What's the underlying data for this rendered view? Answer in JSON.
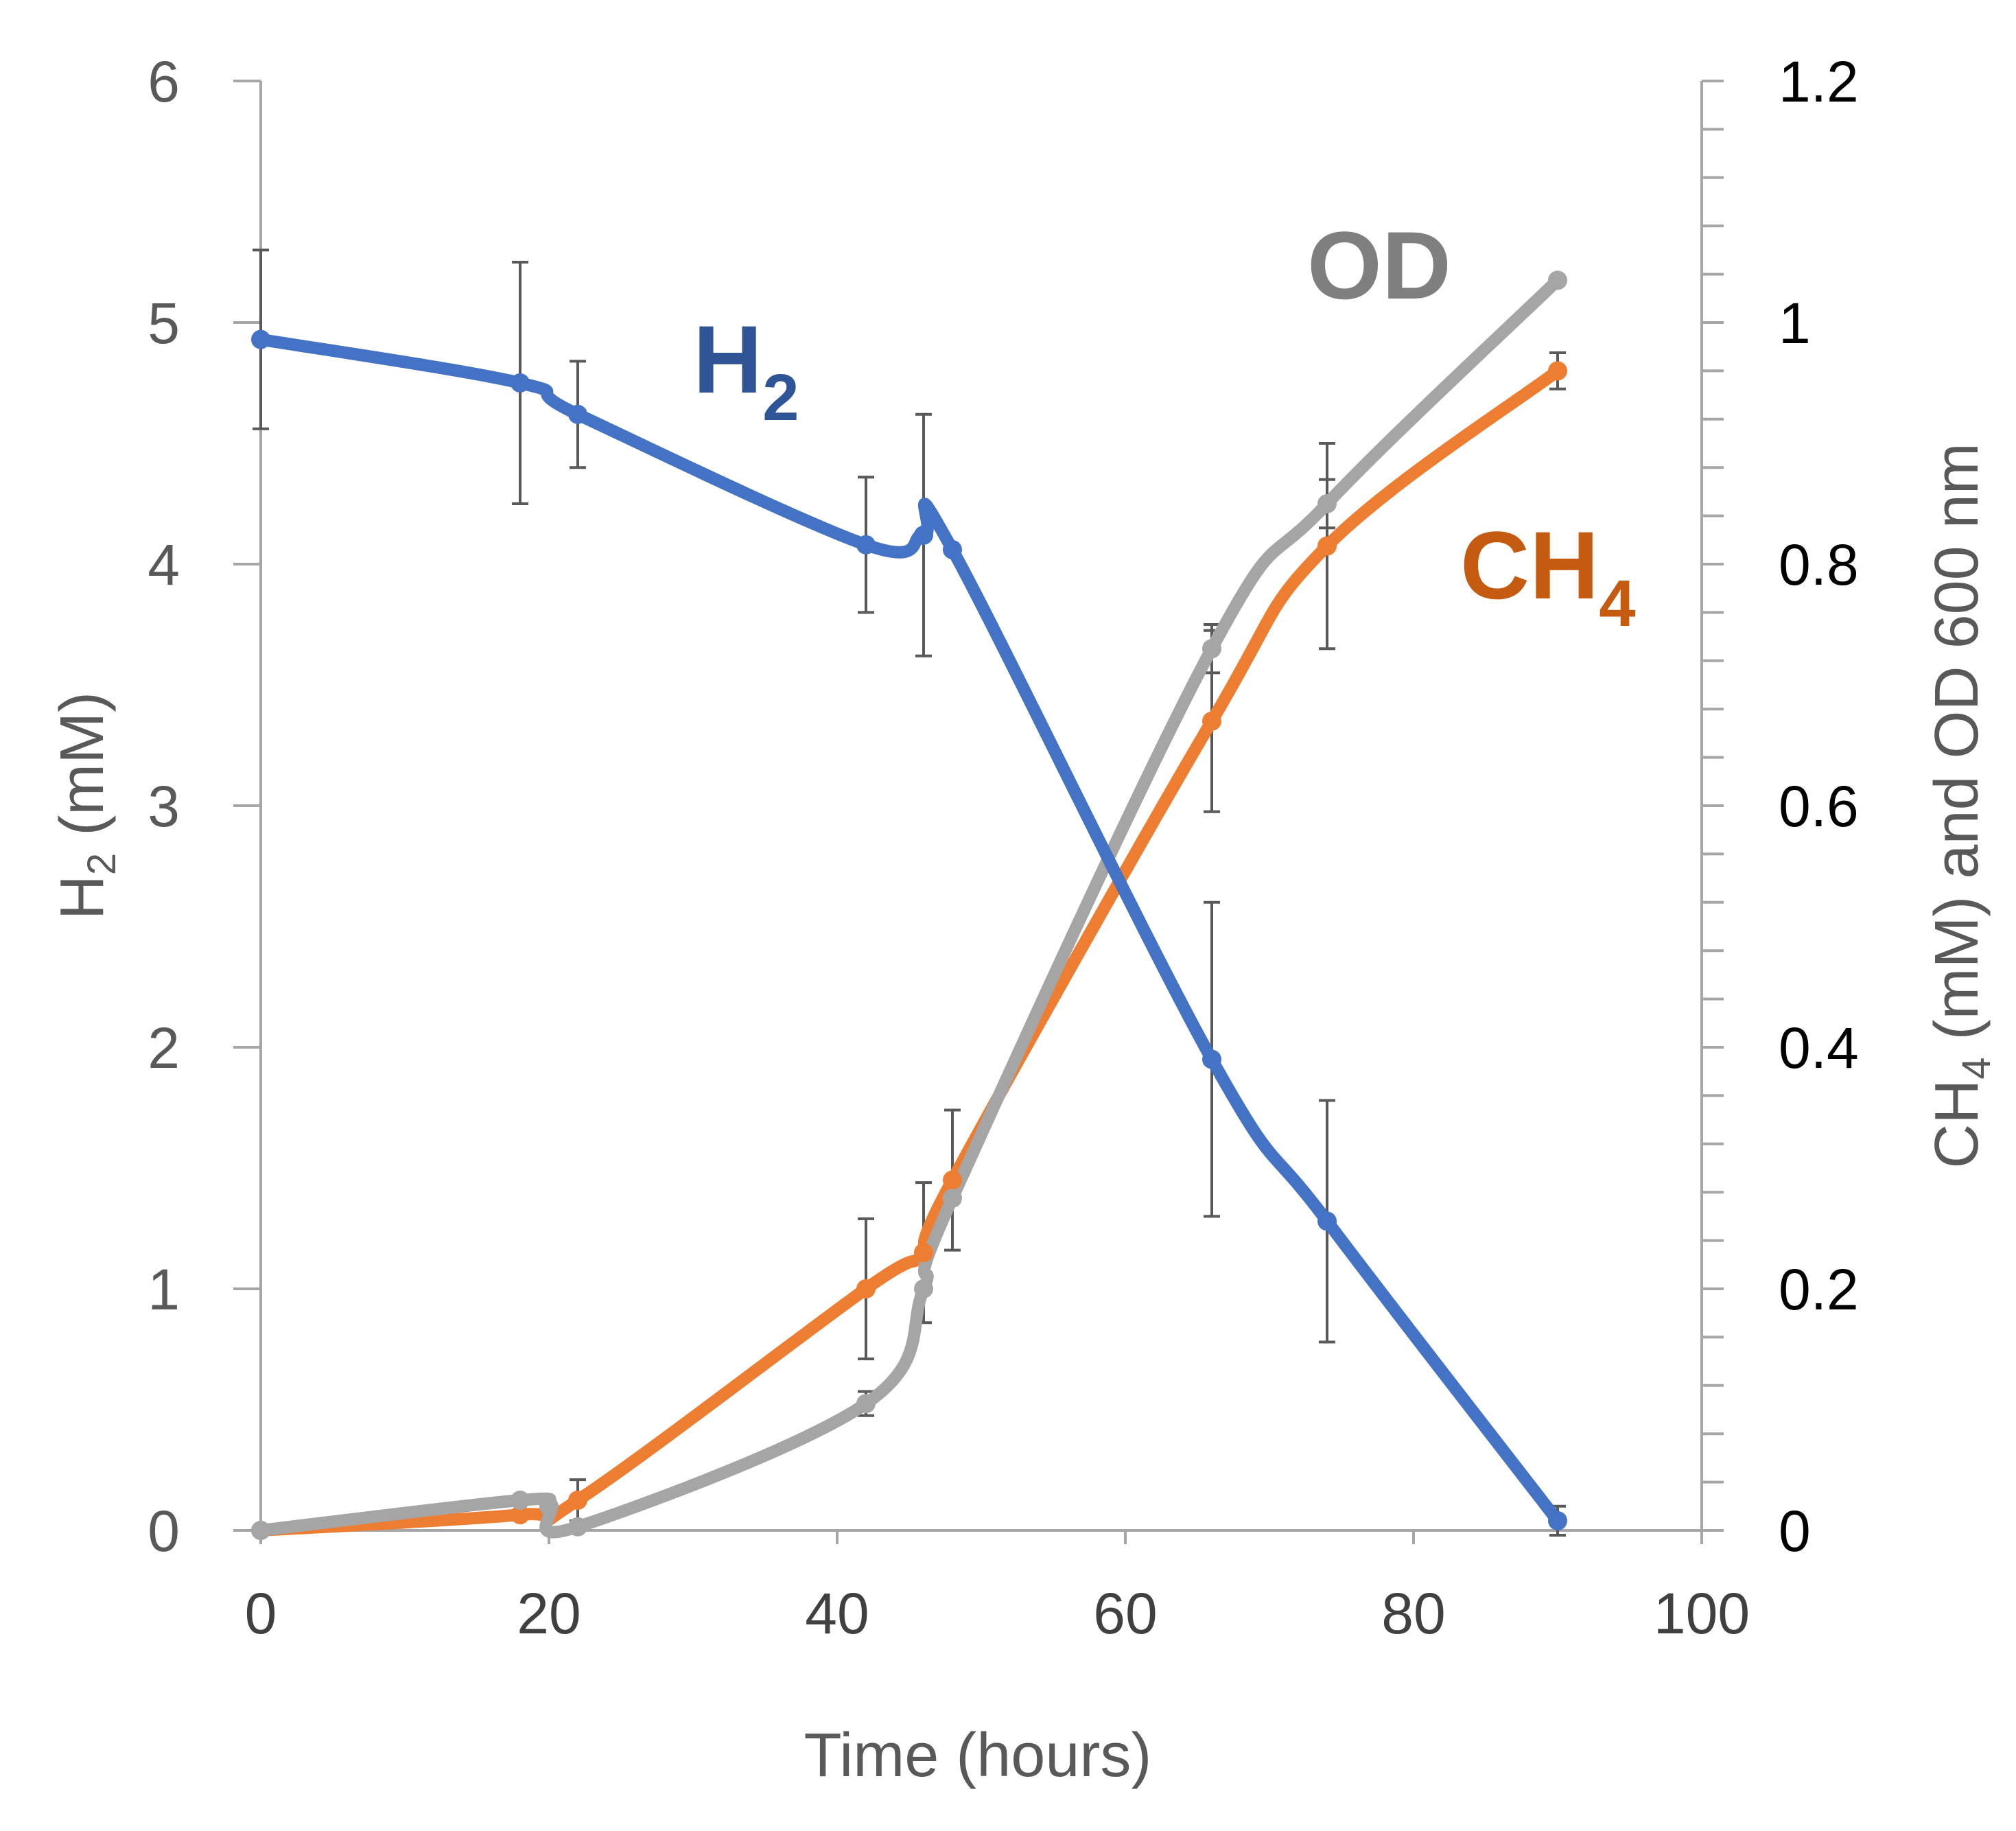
{
  "chart_data": {
    "type": "line",
    "title": "",
    "xlabel": "Time (hours)",
    "ylabel_left": {
      "base": "H",
      "sub": "2",
      "rest": " (mM)"
    },
    "ylabel_right": {
      "base": "CH",
      "sub": "4",
      "rest": " (mM) and OD 600 nm"
    },
    "xlim": [
      0,
      100
    ],
    "ylim_left": [
      0,
      6
    ],
    "ylim_right": [
      0,
      1.2
    ],
    "x_ticks": [
      "0",
      "20",
      "40",
      "60",
      "80",
      "100"
    ],
    "y_left_ticks": [
      "0",
      "1",
      "2",
      "3",
      "4",
      "5",
      "6"
    ],
    "y_right_ticks": [
      "0",
      "0.2",
      "0.4",
      "0.6",
      "0.8",
      "1",
      "1.2"
    ],
    "grid": false,
    "series": [
      {
        "name": "H2",
        "label_base": "H",
        "label_sub": "2",
        "axis": "left",
        "color": "#4472c4",
        "label_color": "#2f5597",
        "x": [
          0,
          18,
          22,
          42,
          46,
          48,
          66,
          74,
          90
        ],
        "y": [
          4.93,
          4.75,
          4.62,
          4.08,
          4.12,
          4.06,
          1.95,
          1.28,
          0.04
        ],
        "err": [
          0.37,
          0.5,
          0.22,
          0.28,
          0.5,
          null,
          0.65,
          0.5,
          0.06
        ]
      },
      {
        "name": "CH4",
        "label_base": "CH",
        "label_sub": "4",
        "axis": "right",
        "color": "#ed7d31",
        "label_color": "#c55a11",
        "x": [
          0,
          18,
          22,
          42,
          46,
          48,
          66,
          74,
          90
        ],
        "y": [
          0,
          0.013,
          0.025,
          0.2,
          0.23,
          0.29,
          0.67,
          0.815,
          0.96
        ],
        "err": [
          null,
          null,
          0.017,
          0.058,
          0.058,
          0.058,
          0.075,
          0.085,
          0.015
        ]
      },
      {
        "name": "OD",
        "label_base": "OD",
        "label_sub": "",
        "axis": "right",
        "color": "#a5a5a5",
        "label_color": "#7f7f7f",
        "x": [
          0,
          18,
          20,
          22,
          42,
          46,
          48,
          66,
          74,
          90
        ],
        "y": [
          0,
          0.025,
          0.02,
          0.003,
          0.105,
          0.2,
          0.275,
          0.73,
          0.85,
          1.035
        ],
        "err": [
          null,
          null,
          null,
          null,
          0.01,
          null,
          null,
          0.02,
          0.02,
          null
        ]
      }
    ]
  }
}
